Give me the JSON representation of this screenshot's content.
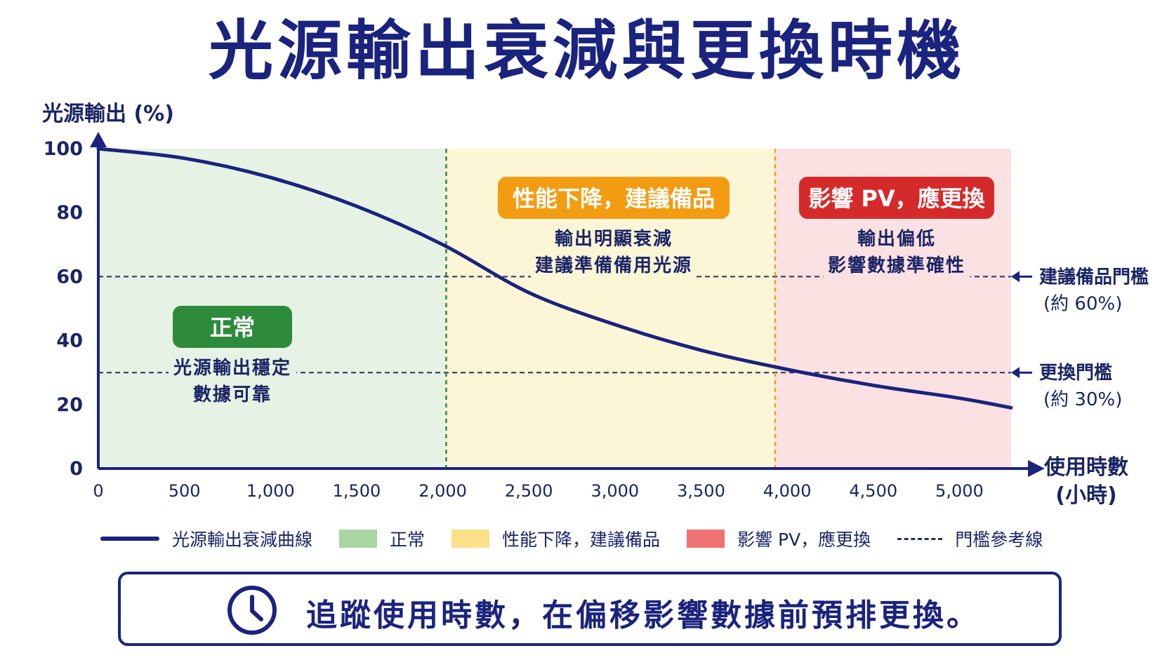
{
  "title": "光源輸出衰減與更換時機",
  "chart_data": {
    "type": "line",
    "ylabel": "光源輸出 (%)",
    "xlabel": [
      "使用時數",
      "(小時)"
    ],
    "xlim": [
      0,
      5300
    ],
    "ylim": [
      0,
      100
    ],
    "x_ticks": [
      {
        "value": 0,
        "label": "0"
      },
      {
        "value": 500,
        "label": "500"
      },
      {
        "value": 1000,
        "label": "1,000"
      },
      {
        "value": 1500,
        "label": "1,500"
      },
      {
        "value": 2000,
        "label": "2,000"
      },
      {
        "value": 2500,
        "label": "2,500"
      },
      {
        "value": 3000,
        "label": "3,000"
      },
      {
        "value": 3500,
        "label": "3,500"
      },
      {
        "value": 4000,
        "label": "4,000"
      },
      {
        "value": 4500,
        "label": "4,500"
      },
      {
        "value": 5000,
        "label": "5,000"
      }
    ],
    "y_ticks": [
      {
        "value": 0,
        "label": "0"
      },
      {
        "value": 20,
        "label": "20"
      },
      {
        "value": 40,
        "label": "40"
      },
      {
        "value": 60,
        "label": "60"
      },
      {
        "value": 80,
        "label": "80"
      },
      {
        "value": 100,
        "label": "100"
      }
    ],
    "series": [
      {
        "name": "光源輸出衰減曲線",
        "color": "#1a237e",
        "x": [
          0,
          500,
          1000,
          1500,
          2000,
          2500,
          3000,
          3500,
          4000,
          4500,
          5000,
          5300
        ],
        "y": [
          100,
          97,
          91,
          82,
          70,
          55,
          45,
          37,
          31,
          26,
          22,
          19
        ]
      }
    ],
    "zones": [
      {
        "name": "正常",
        "x_start": 0,
        "x_end": 2020,
        "fill": "#e6f2e3",
        "divider_color": "#2e8b3c",
        "badge": "正常",
        "badge_color": "#2e8b3c",
        "lines": [
          "光源輸出穩定",
          "數據可靠"
        ]
      },
      {
        "name": "性能下降，建議備品",
        "x_start": 2020,
        "x_end": 3930,
        "fill": "#fdf6d6",
        "divider_color": "#f0a020",
        "badge": "性能下降，建議備品",
        "badge_color": "#f39c12",
        "lines": [
          "輸出明顯衰減",
          "建議準備備用光源"
        ]
      },
      {
        "name": "影響 PV，應更換",
        "x_start": 3930,
        "x_end": 5300,
        "fill": "#fbe1e1",
        "badge": "影響 PV，應更換",
        "badge_color": "#d62a2a",
        "lines": [
          "輸出偏低",
          "影響數據準確性"
        ]
      }
    ],
    "thresholds": [
      {
        "value": 60,
        "lines": [
          "建議備品門檻",
          "(約 60%)"
        ]
      },
      {
        "value": 30,
        "lines": [
          "更換門檻",
          "(約 30%)"
        ]
      }
    ],
    "legend": [
      {
        "type": "line",
        "label": "光源輸出衰減曲線",
        "color": "#1a237e"
      },
      {
        "type": "swatch",
        "label": "正常",
        "color": "#a8d5a2"
      },
      {
        "type": "swatch",
        "label": "性能下降，建議備品",
        "color": "#fde08a"
      },
      {
        "type": "swatch",
        "label": "影響 PV，應更換",
        "color": "#f07272"
      },
      {
        "type": "dash",
        "label": "門檻參考線",
        "color": "#2a2f55"
      }
    ]
  },
  "footer": {
    "icon": "clock-icon",
    "text": "追蹤使用時數，在偏移影響數據前預排更換。"
  }
}
